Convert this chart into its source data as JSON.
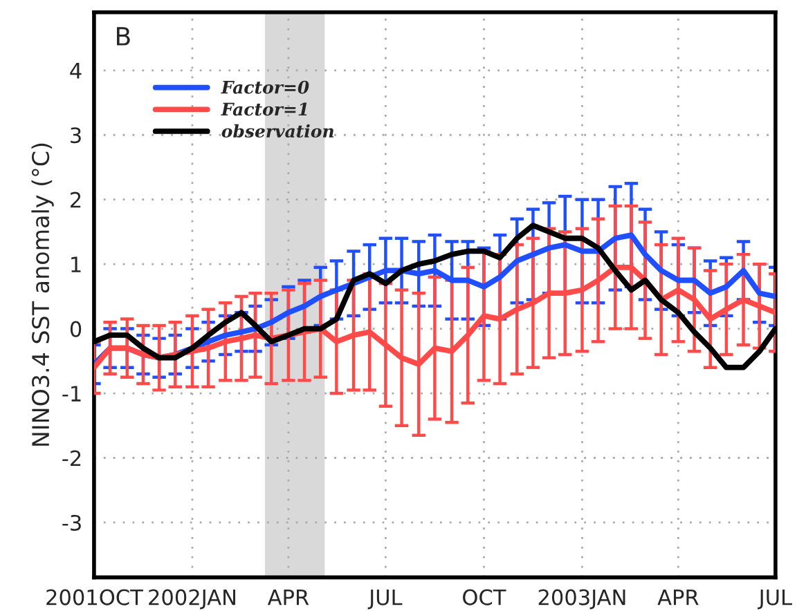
{
  "chart_data": {
    "type": "line",
    "ylabel": "NINO3.4 SST anomaly (°C)",
    "annotations": [
      "B"
    ],
    "x": [
      "2001-10-01",
      "2001-10-16",
      "2001-11-01",
      "2001-11-16",
      "2001-12-01",
      "2001-12-16",
      "2002-01-01",
      "2002-01-16",
      "2002-02-01",
      "2002-02-16",
      "2002-03-01",
      "2002-03-16",
      "2002-04-01",
      "2002-04-16",
      "2002-05-01",
      "2002-05-16",
      "2002-06-01",
      "2002-06-16",
      "2002-07-01",
      "2002-07-16",
      "2002-08-01",
      "2002-08-16",
      "2002-09-01",
      "2002-09-16",
      "2002-10-01",
      "2002-10-16",
      "2002-11-01",
      "2002-11-16",
      "2002-12-01",
      "2002-12-16",
      "2003-01-01",
      "2003-01-16",
      "2003-02-01",
      "2003-02-16",
      "2003-03-01",
      "2003-03-16",
      "2003-04-01",
      "2003-04-16",
      "2003-05-01",
      "2003-05-16",
      "2003-06-01",
      "2003-06-16",
      "2003-07-01"
    ],
    "series": [
      {
        "name": "Factor=0",
        "color": "#1f4fff",
        "values": [
          -0.55,
          -0.3,
          -0.3,
          -0.4,
          -0.45,
          -0.4,
          -0.3,
          -0.2,
          -0.1,
          -0.05,
          0,
          0.1,
          0.25,
          0.35,
          0.5,
          0.6,
          0.7,
          0.8,
          0.9,
          0.9,
          0.85,
          0.9,
          0.75,
          0.75,
          0.65,
          0.8,
          1.05,
          1.15,
          1.25,
          1.3,
          1.2,
          1.2,
          1.4,
          1.45,
          1.15,
          0.9,
          0.75,
          0.75,
          0.55,
          0.65,
          0.9,
          0.55,
          0.5
        ],
        "errors": [
          0.3,
          0.3,
          0.3,
          0.3,
          0.3,
          0.3,
          0.3,
          0.3,
          0.3,
          0.3,
          0.35,
          0.35,
          0.4,
          0.4,
          0.45,
          0.45,
          0.5,
          0.5,
          0.5,
          0.5,
          0.5,
          0.55,
          0.6,
          0.6,
          0.6,
          0.65,
          0.65,
          0.7,
          0.7,
          0.75,
          0.8,
          0.8,
          0.8,
          0.8,
          0.7,
          0.6,
          0.55,
          0.5,
          0.5,
          0.45,
          0.45,
          0.45,
          0.45
        ]
      },
      {
        "name": "Factor=1",
        "color": "#ff4a4a",
        "values": [
          -0.6,
          -0.3,
          -0.3,
          -0.4,
          -0.45,
          -0.4,
          -0.35,
          -0.3,
          -0.2,
          -0.15,
          -0.1,
          -0.15,
          -0.1,
          -0.05,
          0,
          -0.2,
          -0.1,
          -0.05,
          -0.25,
          -0.45,
          -0.55,
          -0.3,
          -0.35,
          -0.1,
          0.2,
          0.15,
          0.3,
          0.4,
          0.55,
          0.55,
          0.6,
          0.75,
          0.95,
          0.95,
          0.75,
          0.45,
          0.6,
          0.45,
          0.15,
          0.3,
          0.45,
          0.35,
          0.25
        ],
        "errors": [
          0.4,
          0.4,
          0.45,
          0.45,
          0.5,
          0.5,
          0.55,
          0.6,
          0.6,
          0.65,
          0.65,
          0.7,
          0.7,
          0.75,
          0.75,
          0.8,
          0.85,
          0.9,
          0.95,
          1.05,
          1.1,
          1.1,
          1.1,
          1.05,
          1.0,
          1.0,
          1.0,
          1.0,
          1.0,
          0.95,
          0.95,
          0.95,
          0.95,
          0.95,
          0.9,
          0.85,
          0.8,
          0.8,
          0.75,
          0.7,
          0.7,
          0.65,
          0.6
        ]
      },
      {
        "name": "observation",
        "color": "#000000",
        "values": [
          -0.2,
          -0.1,
          -0.1,
          -0.3,
          -0.45,
          -0.45,
          -0.3,
          -0.1,
          0.1,
          0.25,
          0.05,
          -0.2,
          -0.1,
          0,
          0,
          0.15,
          0.75,
          0.85,
          0.7,
          0.9,
          1.0,
          1.05,
          1.15,
          1.2,
          1.2,
          1.1,
          1.4,
          1.6,
          1.5,
          1.4,
          1.4,
          1.25,
          0.9,
          0.6,
          0.75,
          0.45,
          0.25,
          -0.05,
          -0.3,
          -0.6,
          -0.6,
          -0.35,
          0.0
        ]
      }
    ],
    "bands": [
      {
        "axis": "x",
        "from": "2002-03-10",
        "to": "2002-05-05",
        "color": "#d9d9d9"
      }
    ],
    "xlim": [
      "2001-10-01",
      "2003-07-01"
    ],
    "xticks": [
      {
        "value": "2001-10-01",
        "label": "2001OCT"
      },
      {
        "value": "2002-01-01",
        "label": "2002JAN"
      },
      {
        "value": "2002-04-01",
        "label": "APR"
      },
      {
        "value": "2002-07-01",
        "label": "JUL"
      },
      {
        "value": "2002-10-01",
        "label": "OCT"
      },
      {
        "value": "2003-01-01",
        "label": "2003JAN"
      },
      {
        "value": "2003-04-01",
        "label": "APR"
      },
      {
        "value": "2003-07-01",
        "label": "JUL"
      }
    ],
    "ylim": [
      -3.85,
      4.9
    ],
    "yticks": [
      -3,
      -2,
      -1,
      0,
      1,
      2,
      3,
      4
    ],
    "grid": true,
    "legend": "top left",
    "line_style": "solid"
  }
}
